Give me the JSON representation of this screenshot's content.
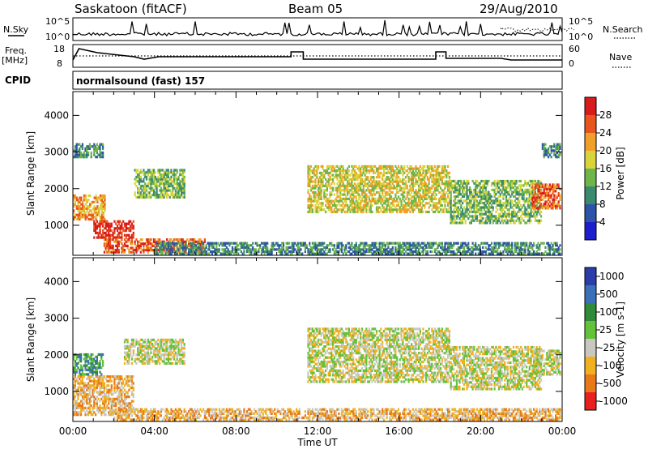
{
  "header": {
    "title": "Saskatoon (fitACF)",
    "beam": "Beam 05",
    "date": "29/Aug/2010"
  },
  "labels": {
    "nsky": "N.Sky",
    "nsky_tick_top": "10^5",
    "nsky_tick_bottom": "10^0",
    "nsearch": "N.Search",
    "nsearch_tick_top": "10^5",
    "nsearch_tick_bottom": "10^0",
    "freq": "Freq.",
    "freq_unit": "[MHz]",
    "freq_tick_top": "18",
    "freq_tick_bottom": "8",
    "nave": "Nave",
    "nave_tick_top": "60",
    "nave_tick_bottom": "0",
    "cpid": "CPID",
    "cpid_value": "normalsound (fast) 157"
  },
  "chart_data": [
    {
      "type": "heatmap",
      "name": "power",
      "xlabel": "",
      "ylabel": "Slant Range [km]",
      "x_ticks": [
        "00:00",
        "04:00",
        "08:00",
        "12:00",
        "16:00",
        "20:00",
        "00:00"
      ],
      "y_ticks": [
        1000,
        2000,
        3000,
        4000
      ],
      "ylim": [
        180,
        4650
      ],
      "colorbar": {
        "label": "Power [dB]",
        "ticks": [
          4,
          8,
          12,
          16,
          20,
          24,
          28
        ],
        "colors": [
          "#1e1ecf",
          "#2d54a8",
          "#3c8a6e",
          "#6fb64a",
          "#d8d43a",
          "#f0a028",
          "#e8561e",
          "#d81c1c"
        ]
      },
      "echo_regions": [
        {
          "t0": 0.0,
          "t1": 1.6,
          "r0": 1200,
          "r1": 1900,
          "level": 20
        },
        {
          "t0": 1.0,
          "t1": 3.0,
          "r0": 700,
          "r1": 1200,
          "level": 28
        },
        {
          "t0": 1.5,
          "t1": 6.5,
          "r0": 300,
          "r1": 700,
          "level": 24
        },
        {
          "t0": 3.0,
          "t1": 5.5,
          "r0": 1800,
          "r1": 2600,
          "level": 12
        },
        {
          "t0": 4.0,
          "t1": 24.0,
          "r0": 200,
          "r1": 600,
          "level": 8
        },
        {
          "t0": 11.5,
          "t1": 18.5,
          "r0": 1400,
          "r1": 2700,
          "level": 16
        },
        {
          "t0": 18.5,
          "t1": 23.0,
          "r0": 1100,
          "r1": 2300,
          "level": 12
        },
        {
          "t0": 22.5,
          "t1": 24.0,
          "r0": 1500,
          "r1": 2200,
          "level": 24
        },
        {
          "t0": 0.0,
          "t1": 1.5,
          "r0": 2900,
          "r1": 3300,
          "level": 8
        },
        {
          "t0": 23.0,
          "t1": 24.0,
          "r0": 2900,
          "r1": 3300,
          "level": 8
        }
      ]
    },
    {
      "type": "heatmap",
      "name": "velocity",
      "xlabel": "Time UT",
      "ylabel": "Slant Range [km]",
      "x_ticks": [
        "00:00",
        "04:00",
        "08:00",
        "12:00",
        "16:00",
        "20:00",
        "00:00"
      ],
      "y_ticks": [
        1000,
        2000,
        3000,
        4000
      ],
      "ylim": [
        180,
        4650
      ],
      "colorbar": {
        "label": "Velocity [m s-1]",
        "ticks": [
          1000,
          500,
          100,
          25,
          -25,
          -100,
          -500,
          -1000
        ],
        "colors": [
          "#2c3ca8",
          "#3b70b8",
          "#2f8a3a",
          "#64c23a",
          "#c8c8c0",
          "#f0b020",
          "#e87818",
          "#e82020"
        ]
      },
      "echo_regions": [
        {
          "t0": 0.0,
          "t1": 3.0,
          "r0": 400,
          "r1": 1500,
          "level": -100
        },
        {
          "t0": 0.0,
          "t1": 1.5,
          "r0": 1500,
          "r1": 2100,
          "level": 100
        },
        {
          "t0": 2.5,
          "t1": 5.5,
          "r0": 1800,
          "r1": 2500,
          "level": 0
        },
        {
          "t0": 2.0,
          "t1": 24.0,
          "r0": 200,
          "r1": 600,
          "level": -100
        },
        {
          "t0": 11.5,
          "t1": 18.5,
          "r0": 1300,
          "r1": 2800,
          "level": 0
        },
        {
          "t0": 18.5,
          "t1": 23.0,
          "r0": 1100,
          "r1": 2300,
          "level": 0
        },
        {
          "t0": 22.5,
          "t1": 24.0,
          "r0": 1500,
          "r1": 2200,
          "level": 0
        }
      ]
    }
  ]
}
